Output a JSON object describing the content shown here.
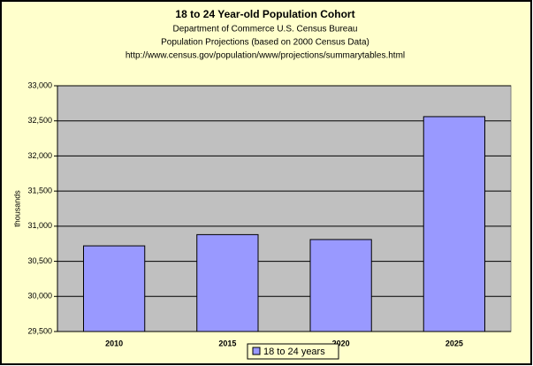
{
  "chart_data": {
    "type": "bar",
    "title": "18 to 24 Year-old Population Cohort",
    "subtitle": [
      "Department of Commerce U.S. Census Bureau",
      "Population Projections (based on 2000 Census Data)",
      "http://www.census.gov/population/www/projections/summarytables.html"
    ],
    "y_label": "thousands",
    "categories": [
      "2010",
      "2015",
      "2020",
      "2025"
    ],
    "series": [
      {
        "name": "18 to 24 years",
        "color": "#9999ff",
        "values": [
          30720,
          30880,
          30810,
          32560
        ]
      }
    ],
    "ylim": [
      29500,
      33000
    ],
    "yticks": [
      {
        "value": 29500,
        "label": "29,500"
      },
      {
        "value": 30000,
        "label": "30,000"
      },
      {
        "value": 30500,
        "label": "30,500"
      },
      {
        "value": 31000,
        "label": "31,000"
      },
      {
        "value": 31500,
        "label": "31,500"
      },
      {
        "value": 32000,
        "label": "32,000"
      },
      {
        "value": 32500,
        "label": "32,500"
      },
      {
        "value": 33000,
        "label": "33,000"
      }
    ],
    "grid": true,
    "legend": "bottom"
  }
}
